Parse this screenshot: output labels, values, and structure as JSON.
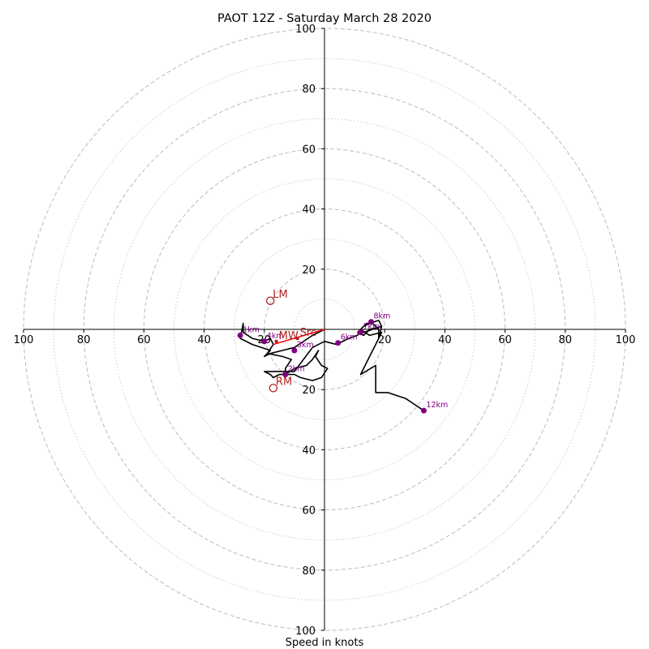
{
  "chart_data": {
    "type": "line",
    "chart_kind": "hodograph",
    "title": "PAOT 12Z - Saturday March 28 2020",
    "xlabel": "Speed in knots",
    "ylabel": "",
    "xlim": [
      -100,
      100
    ],
    "ylim": [
      -100,
      100
    ],
    "rings_major": [
      20,
      40,
      60,
      80,
      100
    ],
    "rings_minor": [
      10,
      30,
      50,
      70,
      90
    ],
    "xticks": [
      {
        "value": -100,
        "label": "100"
      },
      {
        "value": -80,
        "label": "80"
      },
      {
        "value": -60,
        "label": "60"
      },
      {
        "value": -40,
        "label": "40"
      },
      {
        "value": -20,
        "label": "20"
      },
      {
        "value": 20,
        "label": "20"
      },
      {
        "value": 40,
        "label": "40"
      },
      {
        "value": 60,
        "label": "60"
      },
      {
        "value": 80,
        "label": "80"
      },
      {
        "value": 100,
        "label": "100"
      }
    ],
    "yticks": [
      {
        "value": 100,
        "label": "100"
      },
      {
        "value": 80,
        "label": "80"
      },
      {
        "value": 60,
        "label": "60"
      },
      {
        "value": 40,
        "label": "40"
      },
      {
        "value": 20,
        "label": "20"
      },
      {
        "value": -20,
        "label": "20"
      },
      {
        "value": -40,
        "label": "40"
      },
      {
        "value": -60,
        "label": "60"
      },
      {
        "value": -80,
        "label": "80"
      },
      {
        "value": -100,
        "label": "100"
      }
    ],
    "grid": true,
    "trace": {
      "color": "#000000",
      "points": [
        [
          0,
          0
        ],
        [
          -4,
          -2
        ],
        [
          -10,
          -6
        ],
        [
          -14,
          -7
        ],
        [
          -18,
          -8
        ],
        [
          -20,
          -9
        ],
        [
          -18,
          -7
        ],
        [
          -21,
          -6
        ],
        [
          -24,
          -5
        ],
        [
          -28,
          -3
        ],
        [
          -27,
          2
        ],
        [
          -27,
          -1
        ],
        [
          -24,
          -3
        ],
        [
          -20,
          -4
        ],
        [
          -18,
          -3
        ],
        [
          -17,
          -5
        ],
        [
          -19,
          -8
        ],
        [
          -14,
          -9
        ],
        [
          -11,
          -10
        ],
        [
          -13,
          -13
        ],
        [
          -13,
          -15
        ],
        [
          -10,
          -13
        ],
        [
          -6,
          -12
        ],
        [
          -4,
          -10
        ],
        [
          -2,
          -7
        ],
        [
          -3,
          -9
        ],
        [
          -1,
          -12
        ],
        [
          1,
          -13
        ],
        [
          -1,
          -16
        ],
        [
          -4,
          -17
        ],
        [
          -8,
          -16
        ],
        [
          -10,
          -15
        ],
        [
          -15,
          -15
        ],
        [
          -17,
          -16
        ],
        [
          -18,
          -15
        ],
        [
          -20,
          -14
        ],
        [
          -15,
          -14
        ],
        [
          -10,
          -14
        ],
        [
          -4,
          -6
        ],
        [
          0,
          -4
        ],
        [
          4,
          -5
        ],
        [
          8,
          -3
        ],
        [
          11,
          -2
        ],
        [
          12,
          0
        ],
        [
          14,
          2
        ],
        [
          16,
          2
        ],
        [
          18,
          0
        ],
        [
          18,
          -3
        ],
        [
          19,
          1
        ],
        [
          18,
          3
        ],
        [
          15,
          2
        ],
        [
          13,
          1
        ],
        [
          12,
          0
        ],
        [
          11,
          -1
        ],
        [
          13,
          -2
        ],
        [
          15,
          0
        ],
        [
          19,
          1
        ],
        [
          13,
          -1
        ],
        [
          12,
          0
        ],
        [
          15,
          -2
        ],
        [
          19,
          -1
        ],
        [
          17,
          -5
        ],
        [
          15,
          -9
        ],
        [
          12,
          -15
        ],
        [
          17,
          -12
        ],
        [
          17,
          -21
        ],
        [
          21,
          -21
        ],
        [
          27,
          -23
        ],
        [
          33,
          -27
        ]
      ]
    },
    "height_markers": [
      {
        "label": "1km",
        "u": -28,
        "v": -2
      },
      {
        "label": "2km",
        "u": -13,
        "v": -15
      },
      {
        "label": "3km",
        "u": -10,
        "v": -7
      },
      {
        "label": "4km",
        "u": -20,
        "v": -4
      },
      {
        "label": "6km",
        "u": 4.5,
        "v": -4.5
      },
      {
        "label": "7km",
        "u": 12,
        "v": -1
      },
      {
        "label": "8km",
        "u": 15.5,
        "v": 2.5
      },
      {
        "label": "12km",
        "u": 33,
        "v": -27
      }
    ],
    "motion_points": [
      {
        "label": "LM",
        "u": -18,
        "v": 9.5,
        "color": "#b22222"
      },
      {
        "label": "RM",
        "u": -17,
        "v": -19.5,
        "color": "#b22222"
      },
      {
        "label": "MW",
        "u": -16,
        "v": -4,
        "color": "#b22222"
      },
      {
        "label": "Src",
        "u": -9,
        "v": -3,
        "color": "#b22222"
      }
    ],
    "shear_vector": {
      "from": [
        0,
        0
      ],
      "to": [
        -17,
        -5
      ],
      "color": "#ff0000"
    },
    "colors": {
      "marker": "#800080",
      "grid": "#bbbbbb",
      "motion": "#b22222",
      "shear": "#ff0000"
    }
  }
}
